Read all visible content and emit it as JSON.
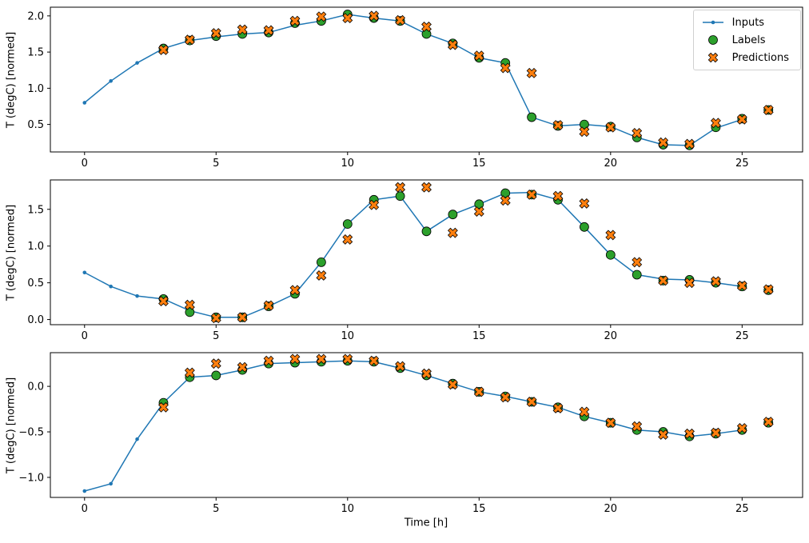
{
  "colors": {
    "inputs": "#1f77b4",
    "labels": "#2ca02c",
    "predictions": "#ff7f0e",
    "marker_edge": "#000000"
  },
  "axis": {
    "xlabel": "Time [h]"
  },
  "legend": {
    "items": [
      {
        "label": "Inputs"
      },
      {
        "label": "Labels"
      },
      {
        "label": "Predictions"
      }
    ]
  },
  "chart_data": [
    {
      "type": "line",
      "ylabel": "T (degC) [normed]",
      "xlim": [
        -1.3,
        27.3
      ],
      "ylim": [
        0.12,
        2.12
      ],
      "xticks": [
        0,
        5,
        10,
        15,
        20,
        25
      ],
      "yticks": [
        0.5,
        1.0,
        1.5,
        2.0
      ],
      "series": [
        {
          "name": "Inputs",
          "style": "line-dot",
          "x": [
            0,
            1,
            2,
            3,
            4,
            5,
            6,
            7,
            8,
            9,
            10,
            11,
            12,
            13,
            14,
            15,
            16,
            17,
            18,
            19,
            20,
            21,
            22,
            23,
            24,
            25
          ],
          "y": [
            0.8,
            1.1,
            1.35,
            1.55,
            1.66,
            1.71,
            1.75,
            1.77,
            1.87,
            1.93,
            2.02,
            1.97,
            1.93,
            1.75,
            1.62,
            1.42,
            1.35,
            0.6,
            0.48,
            0.5,
            0.47,
            0.32,
            0.22,
            0.21,
            0.45,
            0.57
          ]
        },
        {
          "name": "Labels",
          "style": "circle",
          "x": [
            3,
            4,
            5,
            6,
            7,
            8,
            9,
            10,
            11,
            12,
            13,
            14,
            15,
            16,
            17,
            18,
            19,
            20,
            21,
            22,
            23,
            24,
            25,
            26
          ],
          "y": [
            1.55,
            1.66,
            1.72,
            1.75,
            1.77,
            1.9,
            1.93,
            2.02,
            1.97,
            1.93,
            1.75,
            1.62,
            1.42,
            1.35,
            0.6,
            0.48,
            0.5,
            0.47,
            0.32,
            0.22,
            0.21,
            0.46,
            0.58,
            0.7
          ]
        },
        {
          "name": "Predictions",
          "style": "x-cross",
          "x": [
            3,
            4,
            5,
            6,
            7,
            8,
            9,
            10,
            11,
            12,
            13,
            14,
            15,
            16,
            17,
            18,
            19,
            20,
            21,
            22,
            23,
            24,
            25,
            26
          ],
          "y": [
            1.53,
            1.67,
            1.76,
            1.81,
            1.8,
            1.93,
            1.99,
            1.97,
            2.0,
            1.94,
            1.85,
            1.6,
            1.45,
            1.28,
            1.21,
            0.49,
            0.4,
            0.46,
            0.38,
            0.25,
            0.23,
            0.52,
            0.57,
            0.7
          ]
        }
      ]
    },
    {
      "type": "line",
      "ylabel": "T (degC) [normed]",
      "xlim": [
        -1.3,
        27.3
      ],
      "ylim": [
        -0.07,
        1.9
      ],
      "xticks": [
        0,
        5,
        10,
        15,
        20,
        25
      ],
      "yticks": [
        0.0,
        0.5,
        1.0,
        1.5
      ],
      "series": [
        {
          "name": "Inputs",
          "style": "line-dot",
          "x": [
            0,
            1,
            2,
            3,
            4,
            5,
            6,
            7,
            8,
            9,
            10,
            11,
            12,
            13,
            14,
            15,
            16,
            17,
            18,
            19,
            20,
            21,
            22,
            23,
            24,
            25
          ],
          "y": [
            0.64,
            0.45,
            0.32,
            0.28,
            0.12,
            0.03,
            0.03,
            0.18,
            0.35,
            0.78,
            1.3,
            1.63,
            1.68,
            1.2,
            1.43,
            1.57,
            1.72,
            1.73,
            1.63,
            1.26,
            0.88,
            0.61,
            0.55,
            0.54,
            0.5,
            0.45
          ]
        },
        {
          "name": "Labels",
          "style": "circle",
          "x": [
            3,
            4,
            5,
            6,
            7,
            8,
            9,
            10,
            11,
            12,
            13,
            14,
            15,
            16,
            17,
            18,
            19,
            20,
            21,
            22,
            23,
            24,
            25,
            26
          ],
          "y": [
            0.28,
            0.1,
            0.03,
            0.03,
            0.18,
            0.35,
            0.78,
            1.3,
            1.63,
            1.68,
            1.2,
            1.43,
            1.57,
            1.72,
            1.7,
            1.63,
            1.26,
            0.88,
            0.61,
            0.53,
            0.54,
            0.5,
            0.45,
            0.4
          ]
        },
        {
          "name": "Predictions",
          "style": "x-cross",
          "x": [
            3,
            4,
            5,
            6,
            7,
            8,
            9,
            10,
            11,
            12,
            13,
            14,
            15,
            16,
            17,
            18,
            19,
            20,
            21,
            22,
            23,
            24,
            25,
            26
          ],
          "y": [
            0.25,
            0.2,
            0.02,
            0.03,
            0.19,
            0.4,
            0.6,
            1.09,
            1.56,
            1.8,
            1.8,
            1.18,
            1.47,
            1.62,
            1.7,
            1.68,
            1.58,
            1.15,
            0.78,
            0.53,
            0.5,
            0.52,
            0.46,
            0.41
          ]
        }
      ]
    },
    {
      "type": "line",
      "ylabel": "T (degC) [normed]",
      "xlim": [
        -1.3,
        27.3
      ],
      "ylim": [
        -1.22,
        0.37
      ],
      "xticks": [
        0,
        5,
        10,
        15,
        20,
        25
      ],
      "yticks": [
        -1.0,
        -0.5,
        0.0
      ],
      "series": [
        {
          "name": "Inputs",
          "style": "line-dot",
          "x": [
            0,
            1,
            2,
            3,
            4,
            5,
            6,
            7,
            8,
            9,
            10,
            11,
            12,
            13,
            14,
            15,
            16,
            17,
            18,
            19,
            20,
            21,
            22,
            23,
            24,
            25
          ],
          "y": [
            -1.15,
            -1.07,
            -0.58,
            -0.18,
            0.1,
            0.12,
            0.18,
            0.25,
            0.26,
            0.27,
            0.28,
            0.27,
            0.2,
            0.12,
            0.03,
            -0.06,
            -0.11,
            -0.17,
            -0.23,
            -0.33,
            -0.4,
            -0.48,
            -0.5,
            -0.55,
            -0.52,
            -0.48
          ]
        },
        {
          "name": "Labels",
          "style": "circle",
          "x": [
            3,
            4,
            5,
            6,
            7,
            8,
            9,
            10,
            11,
            12,
            13,
            14,
            15,
            16,
            17,
            18,
            19,
            20,
            21,
            22,
            23,
            24,
            25,
            26
          ],
          "y": [
            -0.18,
            0.1,
            0.12,
            0.18,
            0.25,
            0.26,
            0.27,
            0.28,
            0.27,
            0.2,
            0.12,
            0.03,
            -0.06,
            -0.11,
            -0.17,
            -0.23,
            -0.33,
            -0.4,
            -0.48,
            -0.5,
            -0.55,
            -0.52,
            -0.48,
            -0.4
          ]
        },
        {
          "name": "Predictions",
          "style": "x-cross",
          "x": [
            3,
            4,
            5,
            6,
            7,
            8,
            9,
            10,
            11,
            12,
            13,
            14,
            15,
            16,
            17,
            18,
            19,
            20,
            21,
            22,
            23,
            24,
            25,
            26
          ],
          "y": [
            -0.23,
            0.15,
            0.25,
            0.21,
            0.28,
            0.3,
            0.3,
            0.3,
            0.28,
            0.22,
            0.14,
            0.02,
            -0.06,
            -0.12,
            -0.17,
            -0.24,
            -0.28,
            -0.4,
            -0.44,
            -0.53,
            -0.52,
            -0.51,
            -0.46,
            -0.39
          ]
        }
      ]
    }
  ]
}
